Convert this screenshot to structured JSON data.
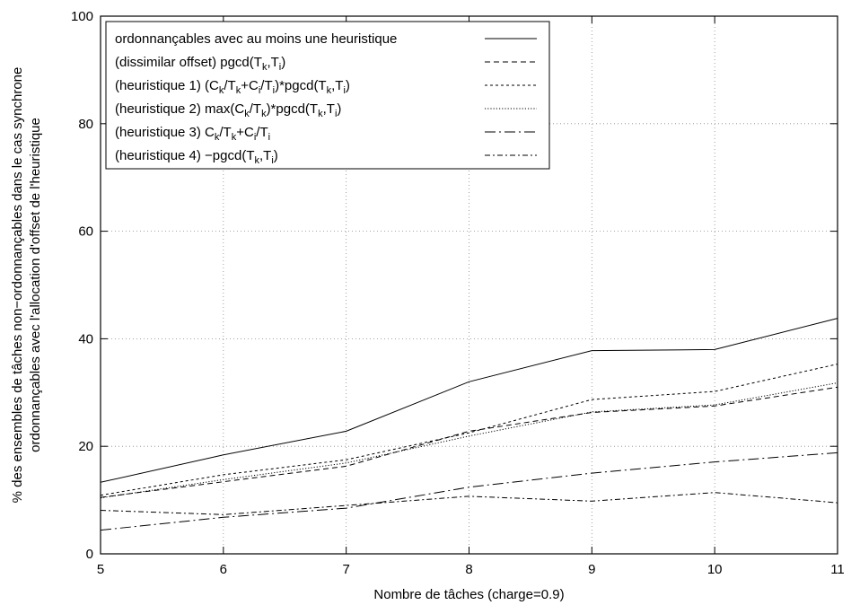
{
  "chart_data": {
    "type": "line",
    "title": "",
    "xlabel": "Nombre de tâches (charge=0.9)",
    "ylabel_lines": [
      "% des ensembles de tâches non−ordonnançables dans le cas synchrone",
      "ordonnançables avec l'allocation d'offset de l'heuristique"
    ],
    "xlim": [
      5,
      11
    ],
    "ylim": [
      0,
      100
    ],
    "xticks": [
      5,
      6,
      7,
      8,
      9,
      10,
      11
    ],
    "yticks": [
      0,
      20,
      40,
      60,
      80,
      100
    ],
    "grid": true,
    "legend_position": "top-left",
    "x": [
      5,
      6,
      7,
      8,
      9,
      10,
      11
    ],
    "series": [
      {
        "name": "ordonnançables avec au moins une heuristique",
        "label_parts": [
          {
            "t": "ordonnançables avec au moins une heuristique"
          }
        ],
        "dash": "solid",
        "values": [
          13.3,
          18.4,
          22.8,
          32.0,
          37.8,
          38.0,
          43.8
        ]
      },
      {
        "name": "(dissimilar offset) pgcd(Tk,Ti)",
        "label_parts": [
          {
            "t": "(dissimilar offset) pgcd(T"
          },
          {
            "s": "k"
          },
          {
            "t": ",T"
          },
          {
            "s": "i"
          },
          {
            "t": ")"
          }
        ],
        "dash": "dashed",
        "values": [
          10.5,
          13.4,
          16.3,
          22.8,
          26.3,
          27.5,
          31.0
        ]
      },
      {
        "name": "(heuristique 1) (Ck/Tk+Ci/Ti)*pgcd(Tk,Ti)",
        "label_parts": [
          {
            "t": "(heuristique 1) (C"
          },
          {
            "s": "k"
          },
          {
            "t": "/T"
          },
          {
            "s": "k"
          },
          {
            "t": "+C"
          },
          {
            "s": "i"
          },
          {
            "t": "/T"
          },
          {
            "s": "i"
          },
          {
            "t": ")*pgcd(T"
          },
          {
            "s": "k"
          },
          {
            "t": ",T"
          },
          {
            "s": "i"
          },
          {
            "t": ")"
          }
        ],
        "dash": "short-dashed",
        "values": [
          10.9,
          14.7,
          17.5,
          22.5,
          28.7,
          30.2,
          35.3
        ]
      },
      {
        "name": "(heuristique 2) max(Ck/Tk)*pgcd(Tk,Ti)",
        "label_parts": [
          {
            "t": "(heuristique 2) max(C"
          },
          {
            "s": "k"
          },
          {
            "t": "/T"
          },
          {
            "s": "k"
          },
          {
            "t": ")*pgcd(T"
          },
          {
            "s": "k"
          },
          {
            "t": ",T"
          },
          {
            "s": "i"
          },
          {
            "t": ")"
          }
        ],
        "dash": "dotted",
        "values": [
          10.4,
          13.8,
          16.9,
          21.9,
          26.4,
          27.7,
          31.8
        ]
      },
      {
        "name": "(heuristique 3) Ck/Tk+Ci/Ti",
        "label_parts": [
          {
            "t": "(heuristique 3) C"
          },
          {
            "s": "k"
          },
          {
            "t": "/T"
          },
          {
            "s": "k"
          },
          {
            "t": "+C"
          },
          {
            "s": "i"
          },
          {
            "t": "/T"
          },
          {
            "s": "i"
          }
        ],
        "dash": "long-dash-dot",
        "values": [
          4.4,
          6.8,
          8.5,
          12.4,
          15.0,
          17.1,
          18.8
        ]
      },
      {
        "name": "(heuristique 4) −pgcd(Tk,Ti)",
        "label_parts": [
          {
            "t": "(heuristique 4) −pgcd(T"
          },
          {
            "s": "k"
          },
          {
            "t": ",T"
          },
          {
            "s": "i"
          },
          {
            "t": ")"
          }
        ],
        "dash": "dash-dot",
        "values": [
          8.1,
          7.3,
          9.0,
          10.7,
          9.8,
          11.4,
          9.5
        ]
      }
    ]
  }
}
